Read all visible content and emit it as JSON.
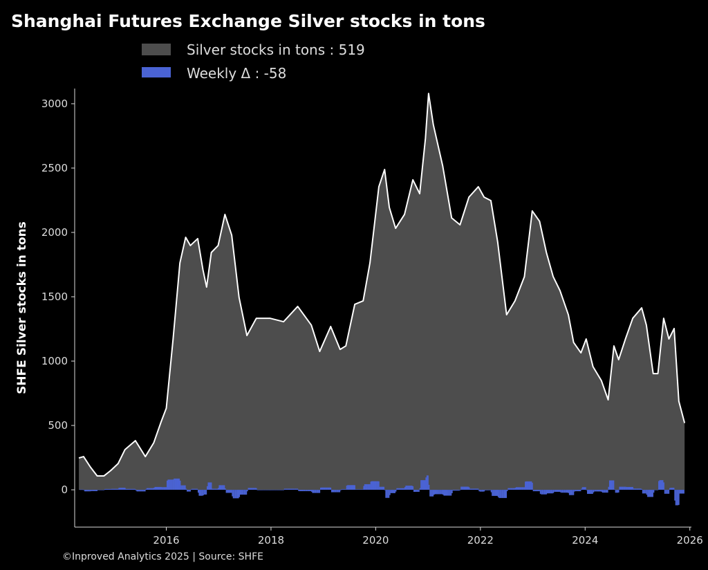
{
  "chart_data": {
    "type": "area",
    "title": "Shanghai Futures Exchange Silver stocks in tons",
    "ylabel": "SHFE Silver stocks in tons",
    "xlabel": "",
    "xlim": [
      2014.25,
      2026.03
    ],
    "ylim": [
      -290,
      3118
    ],
    "x_ticks": [
      2016,
      2018,
      2020,
      2022,
      2024,
      2026
    ],
    "y_ticks": [
      0,
      500,
      1000,
      1500,
      2000,
      2500,
      3000
    ],
    "grid": false,
    "legend_position": "top-center",
    "legend": [
      {
        "label": "Silver stocks in tons : 519",
        "color": "#4d4d4d"
      },
      {
        "label": "Weekly Δ : -58",
        "color": "#4a63d4"
      }
    ],
    "footer": "©Inproved Analytics 2025 | Source: SHFE",
    "colors": {
      "area": "#4d4d4d",
      "line": "#ffffff",
      "delta": "#4a63d4",
      "background": "#000000",
      "axis": "#dddddd"
    },
    "series": [
      {
        "name": "Silver stocks in tons",
        "points": [
          [
            2014.33,
            247
          ],
          [
            2014.42,
            258
          ],
          [
            2014.55,
            177
          ],
          [
            2014.68,
            108
          ],
          [
            2014.81,
            108
          ],
          [
            2014.94,
            150
          ],
          [
            2015.08,
            204
          ],
          [
            2015.21,
            312
          ],
          [
            2015.41,
            382
          ],
          [
            2015.6,
            258
          ],
          [
            2015.76,
            365
          ],
          [
            2015.9,
            527
          ],
          [
            2016.0,
            634
          ],
          [
            2016.13,
            1172
          ],
          [
            2016.26,
            1763
          ],
          [
            2016.37,
            1962
          ],
          [
            2016.46,
            1898
          ],
          [
            2016.6,
            1952
          ],
          [
            2016.7,
            1710
          ],
          [
            2016.77,
            1575
          ],
          [
            2016.86,
            1844
          ],
          [
            2016.99,
            1898
          ],
          [
            2017.12,
            2140
          ],
          [
            2017.25,
            1978
          ],
          [
            2017.39,
            1495
          ],
          [
            2017.54,
            1199
          ],
          [
            2017.72,
            1333
          ],
          [
            2017.98,
            1333
          ],
          [
            2018.24,
            1306
          ],
          [
            2018.51,
            1425
          ],
          [
            2018.77,
            1280
          ],
          [
            2018.93,
            1075
          ],
          [
            2019.14,
            1269
          ],
          [
            2019.32,
            1091
          ],
          [
            2019.43,
            1118
          ],
          [
            2019.6,
            1441
          ],
          [
            2019.76,
            1468
          ],
          [
            2019.89,
            1763
          ],
          [
            2020.06,
            2355
          ],
          [
            2020.17,
            2489
          ],
          [
            2020.26,
            2194
          ],
          [
            2020.38,
            2032
          ],
          [
            2020.55,
            2140
          ],
          [
            2020.71,
            2409
          ],
          [
            2020.84,
            2301
          ],
          [
            2020.95,
            2731
          ],
          [
            2021.01,
            3080
          ],
          [
            2021.1,
            2838
          ],
          [
            2021.28,
            2516
          ],
          [
            2021.45,
            2113
          ],
          [
            2021.61,
            2059
          ],
          [
            2021.78,
            2274
          ],
          [
            2021.96,
            2355
          ],
          [
            2022.07,
            2274
          ],
          [
            2022.2,
            2247
          ],
          [
            2022.33,
            1925
          ],
          [
            2022.5,
            1360
          ],
          [
            2022.66,
            1468
          ],
          [
            2022.84,
            1656
          ],
          [
            2022.99,
            2167
          ],
          [
            2023.13,
            2086
          ],
          [
            2023.26,
            1844
          ],
          [
            2023.39,
            1656
          ],
          [
            2023.52,
            1548
          ],
          [
            2023.68,
            1360
          ],
          [
            2023.78,
            1145
          ],
          [
            2023.92,
            1064
          ],
          [
            2024.02,
            1172
          ],
          [
            2024.15,
            957
          ],
          [
            2024.31,
            849
          ],
          [
            2024.44,
            699
          ],
          [
            2024.55,
            1118
          ],
          [
            2024.64,
            1011
          ],
          [
            2024.77,
            1172
          ],
          [
            2024.91,
            1333
          ],
          [
            2025.08,
            1414
          ],
          [
            2025.17,
            1280
          ],
          [
            2025.3,
            903
          ],
          [
            2025.39,
            903
          ],
          [
            2025.5,
            1333
          ],
          [
            2025.6,
            1172
          ],
          [
            2025.7,
            1253
          ],
          [
            2025.79,
            688
          ],
          [
            2025.9,
            519
          ]
        ]
      },
      {
        "name": "Weekly Δ",
        "derived_from": "week-over-week change of stocks",
        "latest": -58
      }
    ]
  }
}
